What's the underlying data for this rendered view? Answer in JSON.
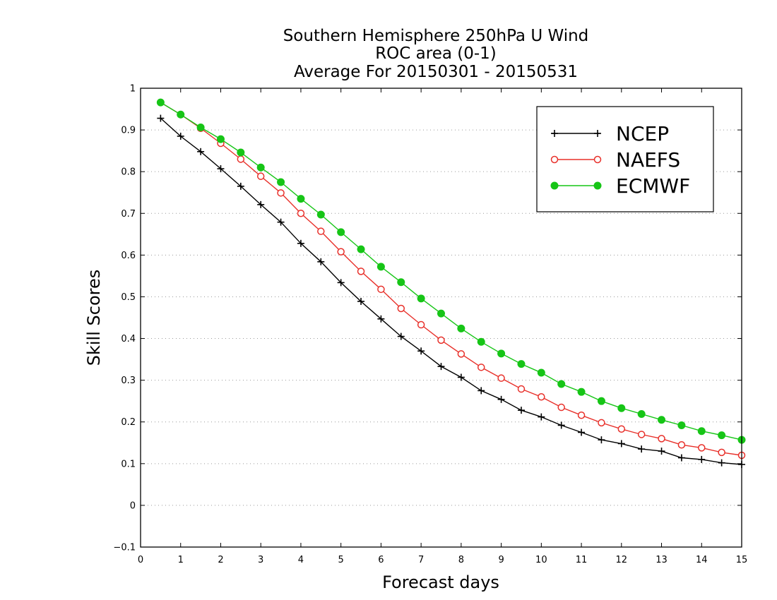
{
  "chart_data": {
    "type": "line",
    "title_lines": [
      "Southern Hemisphere 250hPa U Wind",
      "ROC area (0-1)",
      "Average For 20150301 - 20150531"
    ],
    "xlabel": "Forecast days",
    "ylabel": "Skill Scores",
    "xlim": [
      0,
      15
    ],
    "ylim": [
      -0.1,
      1
    ],
    "xticks": [
      0,
      1,
      2,
      3,
      4,
      5,
      6,
      7,
      8,
      9,
      10,
      11,
      12,
      13,
      14,
      15
    ],
    "xtick_labels": [
      "0",
      "1",
      "2",
      "3",
      "4",
      "5",
      "6",
      "7",
      "8",
      "9",
      "10",
      "11",
      "12",
      "13",
      "14",
      "15"
    ],
    "yticks": [
      -0.1,
      0,
      0.1,
      0.2,
      0.3,
      0.4,
      0.5,
      0.6,
      0.7,
      0.8,
      0.9,
      1
    ],
    "ytick_labels": [
      "−0.1",
      "0",
      "0.1",
      "0.2",
      "0.3",
      "0.4",
      "0.5",
      "0.6",
      "0.7",
      "0.8",
      "0.9",
      "1"
    ],
    "grid": "horizontal dotted",
    "legend_position": "top-right",
    "x": [
      0.5,
      1,
      1.5,
      2,
      2.5,
      3,
      3.5,
      4,
      4.5,
      5,
      5.5,
      6,
      6.5,
      7,
      7.5,
      8,
      8.5,
      9,
      9.5,
      10,
      10.5,
      11,
      11.5,
      12,
      12.5,
      13,
      13.5,
      14,
      14.5,
      15
    ],
    "series": [
      {
        "name": "NCEP",
        "color": "#000000",
        "marker": "plus",
        "values": [
          0.928,
          0.885,
          0.848,
          0.807,
          0.765,
          0.721,
          0.679,
          0.628,
          0.584,
          0.534,
          0.489,
          0.447,
          0.405,
          0.37,
          0.333,
          0.307,
          0.275,
          0.254,
          0.228,
          0.212,
          0.192,
          0.175,
          0.157,
          0.148,
          0.135,
          0.13,
          0.114,
          0.11,
          0.102,
          0.098
        ]
      },
      {
        "name": "NAEFS",
        "color": "#e8302a",
        "marker": "open-circle",
        "values": [
          0.966,
          0.937,
          0.904,
          0.868,
          0.83,
          0.789,
          0.749,
          0.7,
          0.657,
          0.608,
          0.561,
          0.518,
          0.472,
          0.433,
          0.396,
          0.363,
          0.331,
          0.305,
          0.279,
          0.26,
          0.235,
          0.216,
          0.198,
          0.183,
          0.17,
          0.16,
          0.145,
          0.138,
          0.127,
          0.12
        ]
      },
      {
        "name": "ECMWF",
        "color": "#16c516",
        "marker": "filled-circle",
        "values": [
          0.966,
          0.937,
          0.906,
          0.878,
          0.846,
          0.81,
          0.775,
          0.735,
          0.697,
          0.655,
          0.614,
          0.572,
          0.535,
          0.496,
          0.46,
          0.424,
          0.392,
          0.364,
          0.339,
          0.318,
          0.291,
          0.272,
          0.25,
          0.233,
          0.219,
          0.205,
          0.192,
          0.178,
          0.168,
          0.157
        ]
      }
    ]
  }
}
